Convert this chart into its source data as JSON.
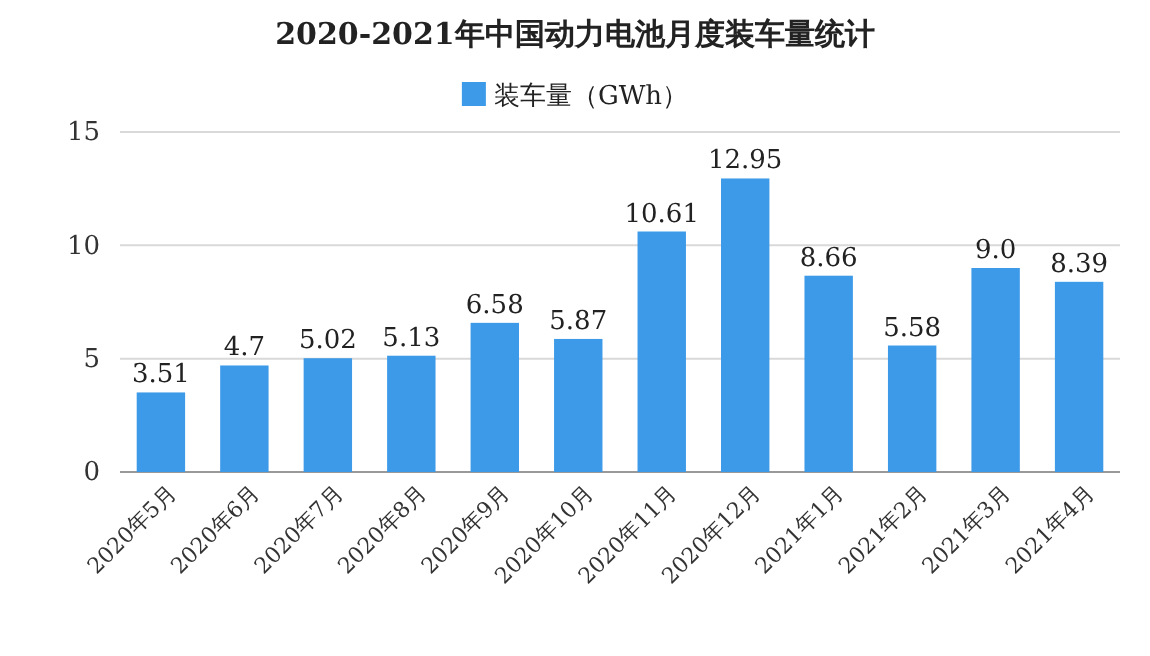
{
  "chart_data": {
    "type": "bar",
    "title": "2020-2021年中国动力电池月度装车量统计",
    "categories": [
      "2020年5月",
      "2020年6月",
      "2020年7月",
      "2020年8月",
      "2020年9月",
      "2020年10月",
      "2020年11月",
      "2020年12月",
      "2021年1月",
      "2021年2月",
      "2021年3月",
      "2021年4月"
    ],
    "series": [
      {
        "name": "装车量（GWh）",
        "color": "#3c9ae8",
        "values": [
          3.51,
          4.7,
          5.02,
          5.13,
          6.58,
          5.87,
          10.61,
          12.95,
          8.66,
          5.58,
          9.0,
          8.39
        ],
        "value_labels": [
          "3.51",
          "4.7",
          "5.02",
          "5.13",
          "6.58",
          "5.87",
          "10.61",
          "12.95",
          "8.66",
          "5.58",
          "9.0",
          "8.39"
        ]
      }
    ],
    "ylim": [
      0,
      15
    ],
    "yticks": [
      0,
      5,
      10,
      15
    ],
    "grid": "y",
    "legend": "top"
  }
}
